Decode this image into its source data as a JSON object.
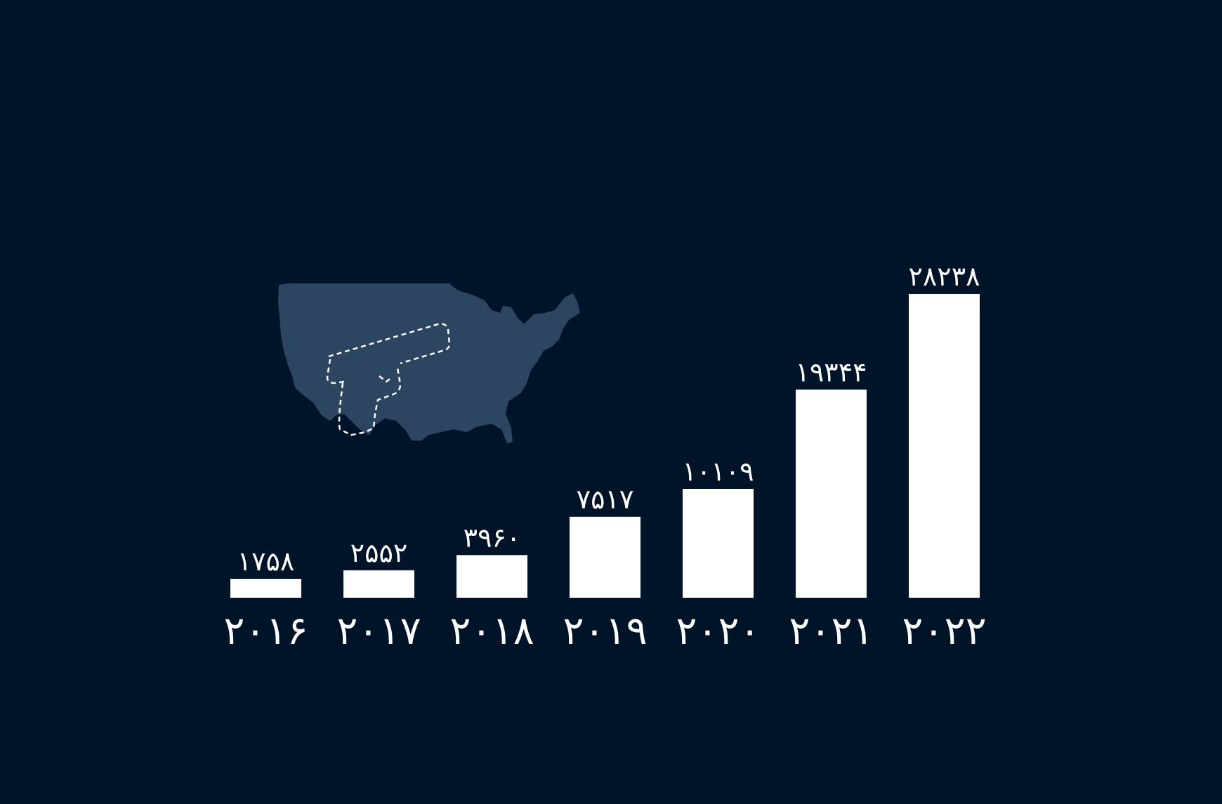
{
  "chart_data": {
    "type": "bar",
    "categories": [
      "۲۰۱۶",
      "۲۰۱۷",
      "۲۰۱۸",
      "۲۰۱۹",
      "۲۰۲۰",
      "۲۰۲۱",
      "۲۰۲۲"
    ],
    "values": [
      1758,
      2552,
      3960,
      7517,
      10109,
      19344,
      28238
    ],
    "data_labels": [
      "۱۷۵۸",
      "۲۵۵۲",
      "۳۹۶۰",
      "۷۵۱۷",
      "۱۰۱۰۹",
      "۱۹۳۴۴",
      "۲۸۲۳۸"
    ],
    "title": "",
    "xlabel": "",
    "ylabel": "",
    "ylim": [
      0,
      28238
    ],
    "grid": false,
    "bar_color": "#ffffff",
    "background": "#001429",
    "decoration": {
      "type": "map",
      "region": "united-states",
      "fill": "#2c4560",
      "highlight": "dashed-outline"
    }
  }
}
